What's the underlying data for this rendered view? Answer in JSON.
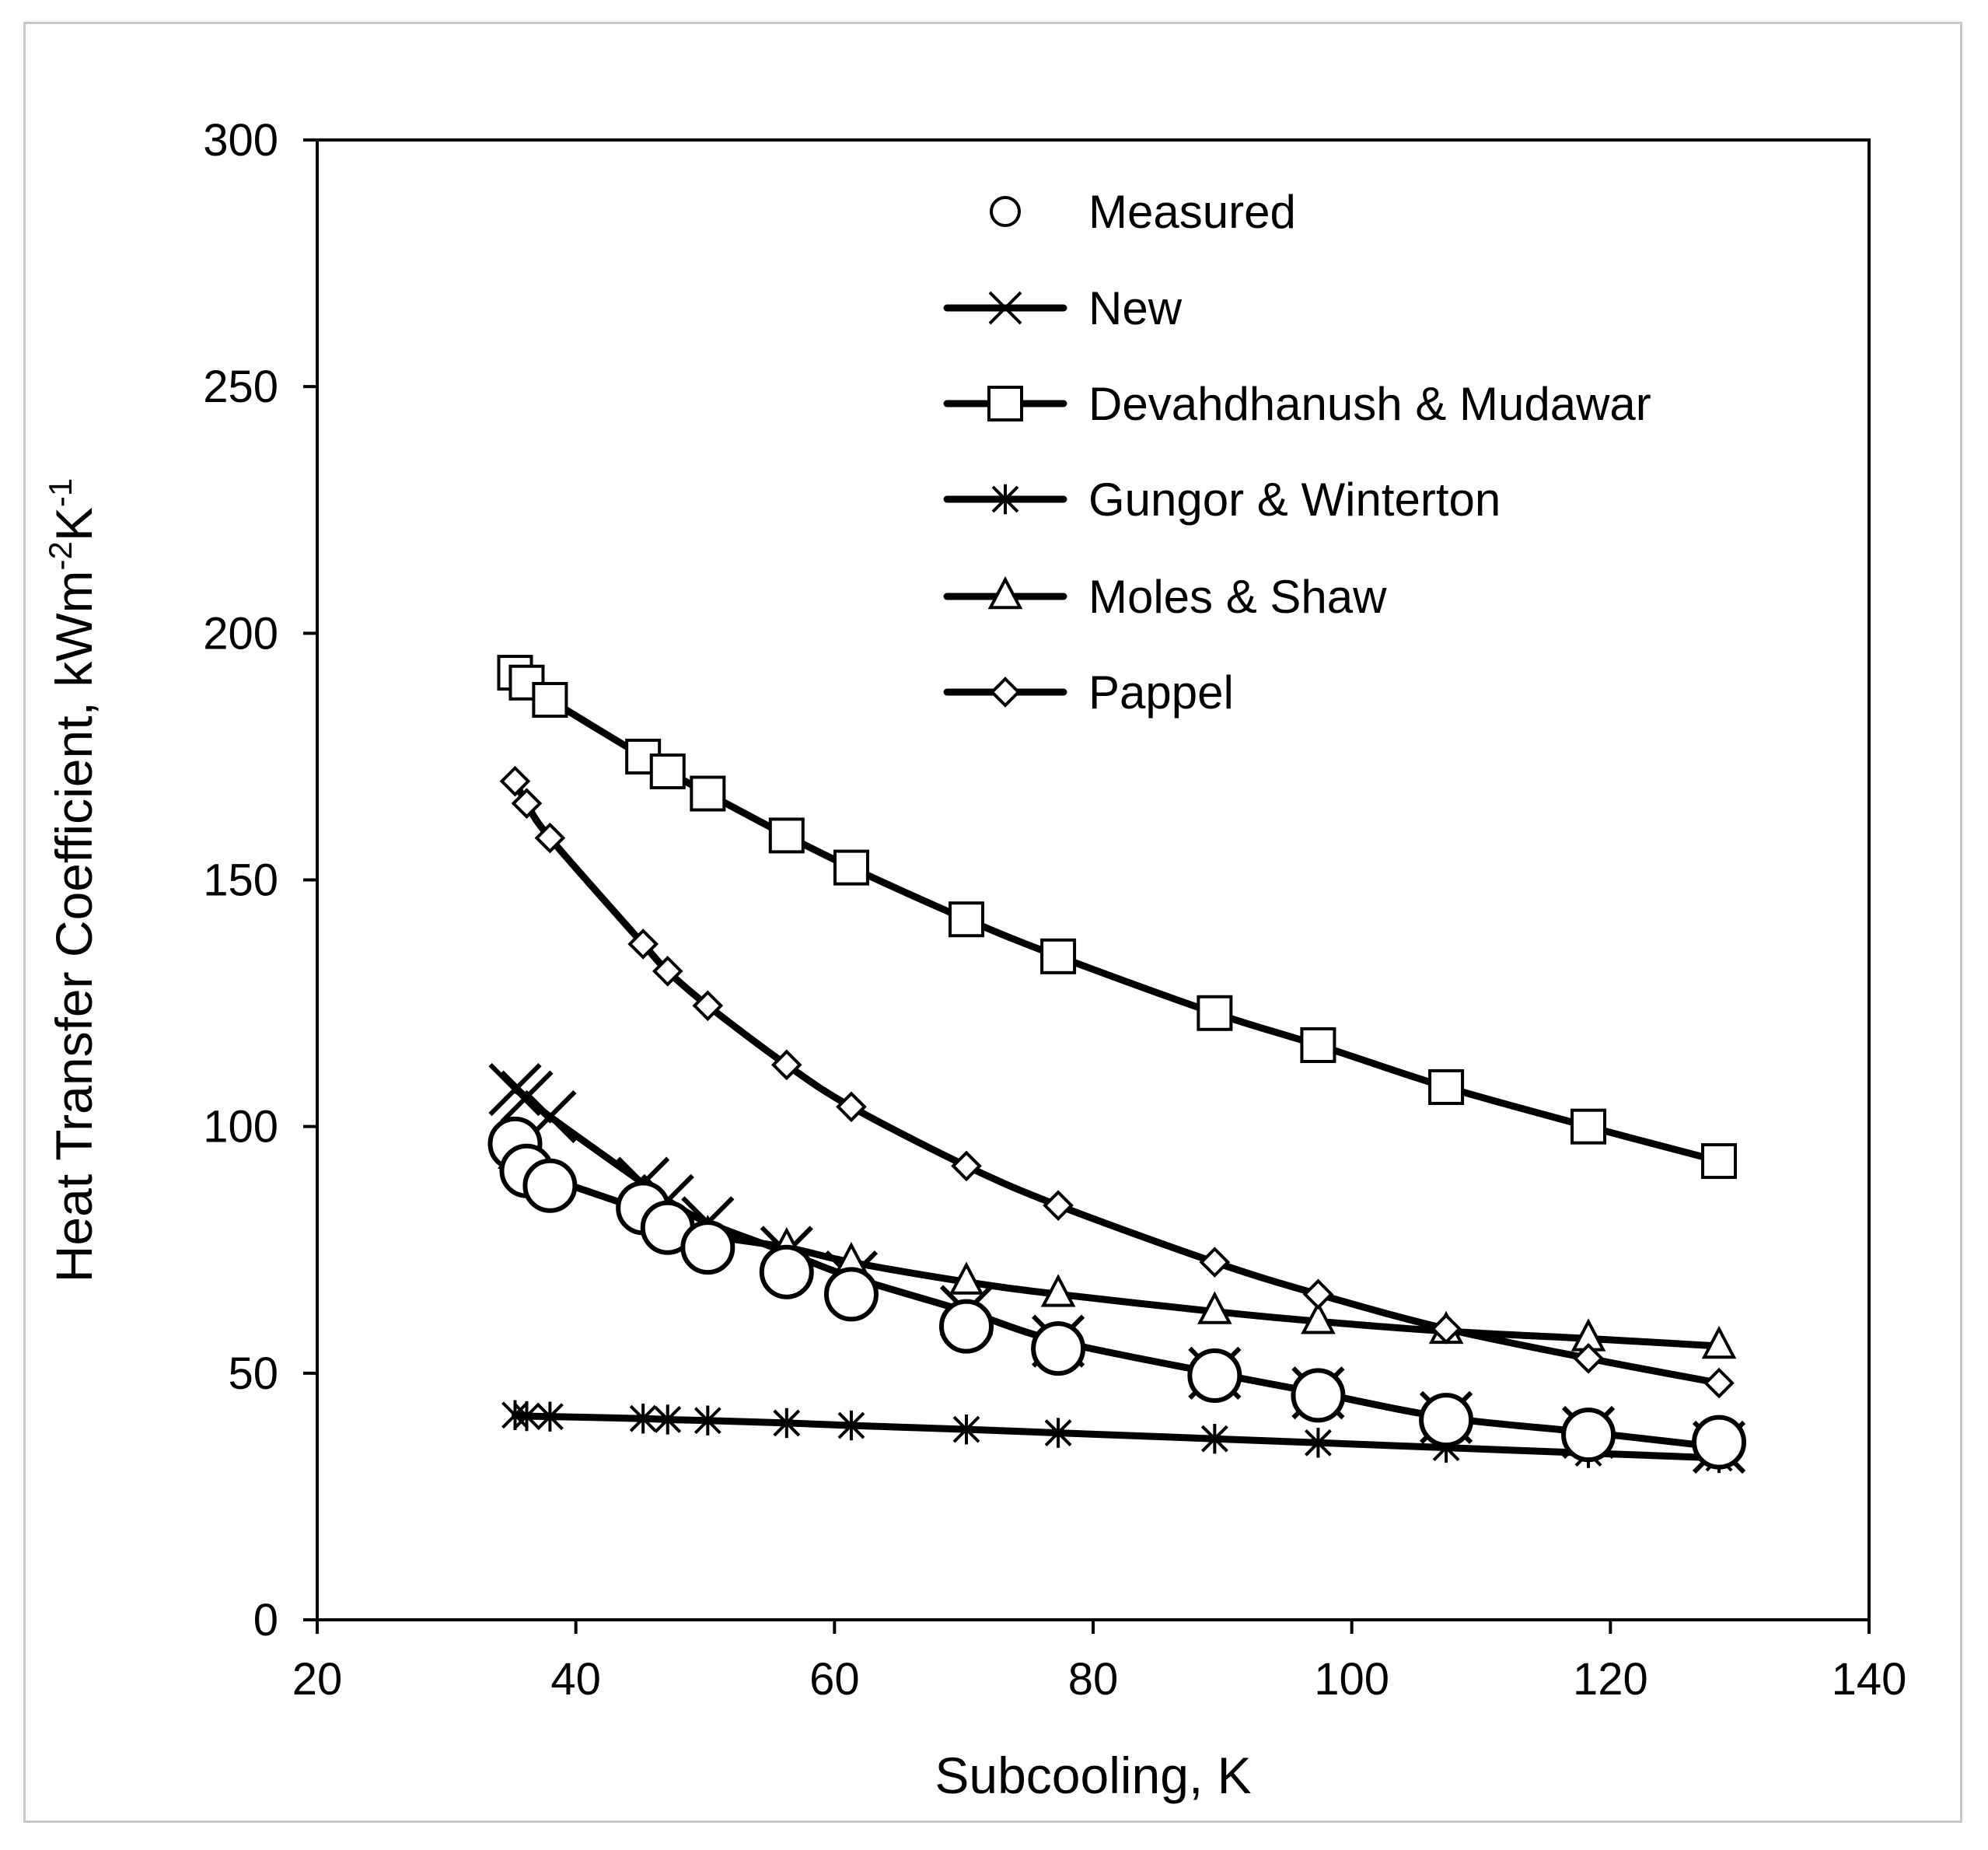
{
  "chart_data": {
    "type": "scatter",
    "title": "",
    "xlabel": "Subcooling, K",
    "ylabel_parts": [
      "Heat Transfer Coefficient, kWm",
      "-2",
      "K",
      "-1"
    ],
    "xlim": [
      20,
      140
    ],
    "ylim": [
      0,
      300
    ],
    "xticks": [
      20,
      40,
      60,
      80,
      100,
      120,
      140
    ],
    "yticks": [
      0,
      50,
      100,
      150,
      200,
      250,
      300
    ],
    "grid": false,
    "legend_position": "top-right",
    "x": [
      35.3,
      36.2,
      38.0,
      45.2,
      47.1,
      50.2,
      56.3,
      61.3,
      70.2,
      77.3,
      89.4,
      97.4,
      107.3,
      118.3,
      128.4
    ],
    "series": [
      {
        "name": "Measured",
        "marker": "circle",
        "line": false,
        "values": [
          96.5,
          91.0,
          88.0,
          83.5,
          79.5,
          75.5,
          70.5,
          66.0,
          59.5,
          55.0,
          49.5,
          45.5,
          40.5,
          37.5,
          36.0
        ]
      },
      {
        "name": "New",
        "marker": "x",
        "line": true,
        "values": [
          107.5,
          106.0,
          102.0,
          88.5,
          85.0,
          80.5,
          74.5,
          69.5,
          62.5,
          56.5,
          50.0,
          46.0,
          41.0,
          38.0,
          35.0
        ]
      },
      {
        "name": "Devahdhanush & Mudawar",
        "marker": "square",
        "line": true,
        "values": [
          192.0,
          190.0,
          186.5,
          175.0,
          172.0,
          167.5,
          159.0,
          152.5,
          142.0,
          134.5,
          123.0,
          116.5,
          108.0,
          100.0,
          93.0
        ]
      },
      {
        "name": "Gungor & Winterton",
        "marker": "asterisk",
        "line": true,
        "values": [
          41.5,
          41.3,
          41.2,
          40.8,
          40.6,
          40.4,
          39.9,
          39.4,
          38.6,
          37.9,
          36.7,
          35.9,
          34.9,
          33.8,
          32.8
        ]
      },
      {
        "name": "Moles & Shaw",
        "marker": "triangle",
        "line": true,
        "values": [
          94.0,
          91.5,
          89.5,
          83.0,
          80.5,
          78.0,
          75.5,
          72.5,
          68.5,
          66.0,
          62.5,
          60.5,
          58.5,
          57.0,
          55.5
        ]
      },
      {
        "name": "Pappel",
        "marker": "diamond",
        "line": true,
        "values": [
          170.0,
          165.5,
          158.5,
          137.0,
          131.5,
          124.5,
          112.5,
          104.0,
          92.0,
          84.0,
          72.5,
          66.0,
          59.0,
          53.0,
          48.0
        ]
      }
    ]
  }
}
